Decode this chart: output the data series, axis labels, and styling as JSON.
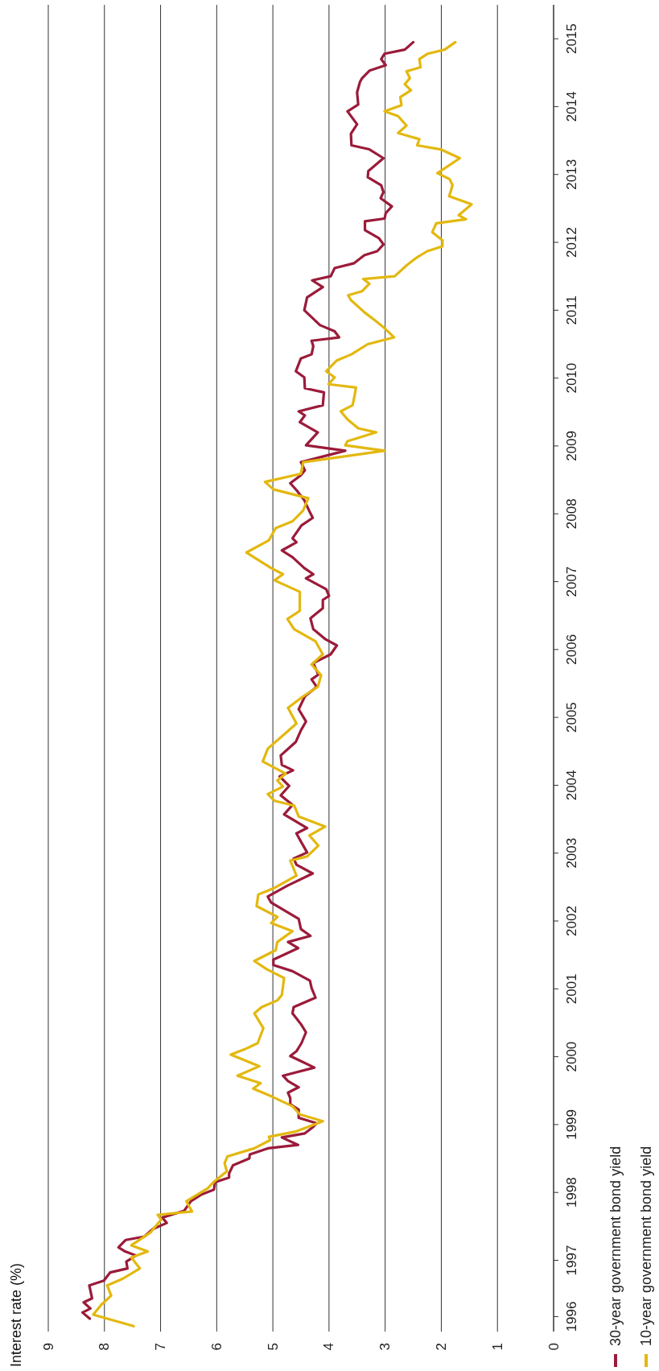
{
  "chart_data": {
    "type": "line",
    "title": "Interest rate (%)",
    "ylim": [
      1995.95,
      2015.5
    ],
    "yticks": [
      {
        "value": 1996.17,
        "label": "1996"
      },
      1997,
      1998,
      1999,
      2000,
      2001,
      2002,
      2003,
      2004,
      2005,
      2006,
      2007,
      2008,
      2009,
      2010,
      2011,
      2012,
      2013,
      2014,
      2015
    ],
    "xlim": [
      9,
      0
    ],
    "xticks": [
      0,
      1,
      2,
      3,
      4,
      5,
      6,
      7,
      8,
      9
    ],
    "grid": "x",
    "legend": "bottom right",
    "line_style": "solid",
    "marker": "none",
    "series": [
      {
        "name": "30-year government bond yield",
        "color": "#9b1b3a",
        "values": [
          1996.14,
          1996.23,
          1996.29,
          1996.38,
          1996.44,
          1996.63,
          1996.7,
          1996.82,
          1996.88,
          1996.98,
          1997.07,
          1997.13,
          1997.19,
          1997.3,
          1997.35,
          1997.46,
          1997.55,
          1997.63,
          1997.73,
          1997.87,
          1997.97,
          1998.04,
          1998.15,
          1998.22,
          1998.28,
          1998.4,
          1998.5,
          1998.56,
          1998.65,
          1998.7,
          1998.81,
          1998.87,
          1998.96,
          1999.02,
          1999.1,
          1999.22,
          1999.3,
          1999.39,
          1999.47,
          1999.55,
          1999.64,
          1999.72,
          1999.84,
          1999.95,
          2000.01,
          2000.08,
          2000.2,
          2000.36,
          2000.48,
          2000.64,
          2000.73,
          2000.87,
          2001.01,
          2001.12,
          2001.26,
          2001.35,
          2001.43,
          2001.6,
          2001.69,
          2001.78,
          2001.88,
          2002.03,
          2002.27,
          2002.36,
          2002.52,
          2002.7,
          2002.83,
          2002.92,
          2003.01,
          2003.17,
          2003.29,
          2003.37,
          2003.57,
          2003.71,
          2003.85,
          2003.99,
          2004.13,
          2004.22,
          2004.3,
          2004.44,
          2004.64,
          2004.81,
          2004.94,
          2005.12,
          2005.31,
          2005.45,
          2005.56,
          2005.63,
          2005.8,
          2005.93,
          2006.06,
          2006.15,
          2006.3,
          2006.46,
          2006.61,
          2006.73,
          2006.79,
          2006.89,
          2007.05,
          2007.11,
          2007.2,
          2007.36,
          2007.46,
          2007.58,
          2007.64,
          2007.83,
          2007.94,
          2008.04,
          2008.2,
          2008.35,
          2008.45,
          2008.57,
          2008.64,
          2008.76,
          2008.93,
          2009.01,
          2009.2,
          2009.35,
          2009.45,
          2009.51,
          2009.6,
          2009.79,
          2009.85,
          2010.01,
          2010.1,
          2010.29,
          2010.35,
          2010.47,
          2010.55,
          2010.6,
          2010.69,
          2010.78,
          2011.0,
          2011.19,
          2011.34,
          2011.44,
          2011.5,
          2011.62,
          2011.69,
          2011.81,
          2011.87,
          2011.97,
          2012.06,
          2012.18,
          2012.31,
          2012.35,
          2012.43,
          2012.53,
          2012.65,
          2012.74,
          2012.84,
          2012.96,
          2013.05,
          2013.24,
          2013.37,
          2013.43,
          2013.6,
          2013.74,
          2013.93,
          2014.03,
          2014.21,
          2014.36,
          2014.42,
          2014.53,
          2014.61,
          2014.7,
          2014.78,
          2014.84,
          2014.95
        ],
        "x": [
          8.26,
          8.39,
          8.25,
          8.37,
          8.22,
          8.27,
          8.01,
          7.9,
          7.59,
          7.61,
          7.44,
          7.63,
          7.75,
          7.62,
          7.29,
          7.14,
          6.89,
          6.97,
          6.58,
          6.46,
          6.27,
          6.05,
          6.03,
          5.78,
          5.78,
          5.71,
          5.42,
          5.41,
          5.09,
          4.55,
          4.84,
          4.43,
          4.29,
          4.22,
          4.54,
          4.54,
          4.69,
          4.69,
          4.73,
          4.54,
          4.73,
          4.82,
          4.26,
          4.54,
          4.69,
          4.58,
          4.49,
          4.41,
          4.5,
          4.65,
          4.63,
          4.24,
          4.31,
          4.34,
          4.65,
          4.99,
          4.99,
          4.55,
          4.73,
          4.33,
          4.5,
          4.54,
          5.03,
          5.09,
          4.74,
          4.29,
          4.58,
          4.63,
          4.39,
          4.5,
          4.58,
          4.39,
          4.8,
          4.65,
          4.86,
          4.71,
          4.88,
          4.64,
          4.84,
          4.86,
          4.59,
          4.5,
          4.41,
          4.54,
          4.43,
          4.22,
          4.31,
          4.19,
          4.28,
          3.97,
          3.86,
          4.06,
          4.28,
          4.33,
          4.11,
          4.11,
          4.0,
          4.05,
          4.41,
          4.28,
          4.44,
          4.65,
          4.84,
          4.58,
          4.65,
          4.49,
          4.29,
          4.35,
          4.44,
          4.58,
          4.69,
          4.5,
          4.43,
          4.5,
          3.71,
          4.41,
          4.2,
          4.52,
          4.43,
          4.54,
          4.11,
          4.09,
          4.43,
          4.44,
          4.59,
          4.5,
          4.31,
          4.28,
          4.31,
          3.82,
          3.9,
          4.16,
          4.44,
          4.39,
          4.11,
          4.3,
          3.97,
          3.9,
          3.56,
          3.37,
          3.14,
          3.03,
          3.11,
          3.36,
          3.36,
          3.01,
          2.99,
          2.88,
          3.08,
          3.03,
          3.07,
          3.31,
          3.3,
          3.03,
          3.28,
          3.6,
          3.61,
          3.5,
          3.67,
          3.48,
          3.5,
          3.45,
          3.41,
          3.28,
          2.99,
          3.07,
          3.01,
          2.65,
          2.5
        ]
      },
      {
        "name": "10-year government bond yield",
        "color": "#e3b80f",
        "values": [
          1996.03,
          1996.2,
          1996.35,
          1996.48,
          1996.63,
          1996.73,
          1996.88,
          1997.04,
          1997.13,
          1997.22,
          1997.41,
          1997.6,
          1997.67,
          1997.72,
          1997.87,
          1998.06,
          1998.15,
          1998.31,
          1998.43,
          1998.53,
          1998.65,
          1998.77,
          1998.82,
          1998.9,
          1999.05,
          1999.15,
          1999.27,
          1999.41,
          1999.53,
          1999.61,
          1999.72,
          1999.86,
          2000.03,
          2000.11,
          2000.2,
          2000.42,
          2000.64,
          2000.73,
          2000.83,
          2000.91,
          2001.16,
          2001.29,
          2001.41,
          2001.57,
          2001.69,
          2001.85,
          2001.97,
          2002.06,
          2002.22,
          2002.39,
          2002.48,
          2002.67,
          2002.89,
          2002.95,
          2003.11,
          2003.26,
          2003.39,
          2003.54,
          2003.7,
          2003.77,
          2003.87,
          2003.98,
          2004.07,
          2004.17,
          2004.35,
          2004.54,
          2004.72,
          2004.91,
          2005.14,
          2005.31,
          2005.45,
          2005.62,
          2005.78,
          2005.93,
          2006.12,
          2006.3,
          2006.45,
          2006.57,
          2006.85,
          2007.02,
          2007.11,
          2007.2,
          2007.43,
          2007.61,
          2007.79,
          2007.89,
          2008.05,
          2008.23,
          2008.36,
          2008.47,
          2008.59,
          2008.76,
          2008.93,
          2009.01,
          2009.07,
          2009.2,
          2009.26,
          2009.39,
          2009.51,
          2009.6,
          2009.76,
          2009.86,
          2009.91,
          2010.01,
          2010.1,
          2010.26,
          2010.35,
          2010.5,
          2010.6,
          2010.75,
          2010.85,
          2010.97,
          2011.15,
          2011.22,
          2011.28,
          2011.39,
          2011.46,
          2011.5,
          2011.66,
          2011.78,
          2011.87,
          2011.94,
          2012.03,
          2012.15,
          2012.28,
          2012.34,
          2012.4,
          2012.56,
          2012.68,
          2012.84,
          2012.93,
          2013.02,
          2013.24,
          2013.37,
          2013.43,
          2013.52,
          2013.61,
          2013.72,
          2013.86,
          2013.93,
          2014.02,
          2014.14,
          2014.24,
          2014.33,
          2014.42,
          2014.52,
          2014.58,
          2014.7,
          2014.78,
          2014.84,
          2014.95
        ],
        "x": [
          7.48,
          8.2,
          8.05,
          7.88,
          7.95,
          7.67,
          7.37,
          7.52,
          7.23,
          7.52,
          7.18,
          6.99,
          7.05,
          6.44,
          6.54,
          6.16,
          6.06,
          5.82,
          5.86,
          5.81,
          5.33,
          5.05,
          5.07,
          4.58,
          4.11,
          4.52,
          4.65,
          5.01,
          5.35,
          5.22,
          5.63,
          5.24,
          5.75,
          5.5,
          5.27,
          5.17,
          5.33,
          5.2,
          4.92,
          4.84,
          4.8,
          5.11,
          5.33,
          4.95,
          4.92,
          4.65,
          5.03,
          4.92,
          5.29,
          5.26,
          4.99,
          4.58,
          4.69,
          4.39,
          4.19,
          4.35,
          4.07,
          4.54,
          4.62,
          4.97,
          5.09,
          4.82,
          4.92,
          4.77,
          5.18,
          5.09,
          4.84,
          4.58,
          4.73,
          4.46,
          4.2,
          4.14,
          4.31,
          4.11,
          4.24,
          4.62,
          4.74,
          4.52,
          4.52,
          4.97,
          4.82,
          5.03,
          5.47,
          5.07,
          4.95,
          4.65,
          4.46,
          4.37,
          4.99,
          5.14,
          4.5,
          4.46,
          3.01,
          3.71,
          3.67,
          3.16,
          3.48,
          3.67,
          3.79,
          3.58,
          3.54,
          3.52,
          4.01,
          3.9,
          4.05,
          3.86,
          3.6,
          3.31,
          2.84,
          3.03,
          3.18,
          3.37,
          3.61,
          3.66,
          3.41,
          3.28,
          3.39,
          2.83,
          2.62,
          2.43,
          2.25,
          1.98,
          1.98,
          2.16,
          2.09,
          1.56,
          1.69,
          1.46,
          1.86,
          1.8,
          1.85,
          2.07,
          1.67,
          2.01,
          2.43,
          2.39,
          2.77,
          2.62,
          2.77,
          3.01,
          2.71,
          2.73,
          2.54,
          2.65,
          2.56,
          2.62,
          2.37,
          2.39,
          2.24,
          1.94,
          1.75
        ]
      }
    ]
  }
}
